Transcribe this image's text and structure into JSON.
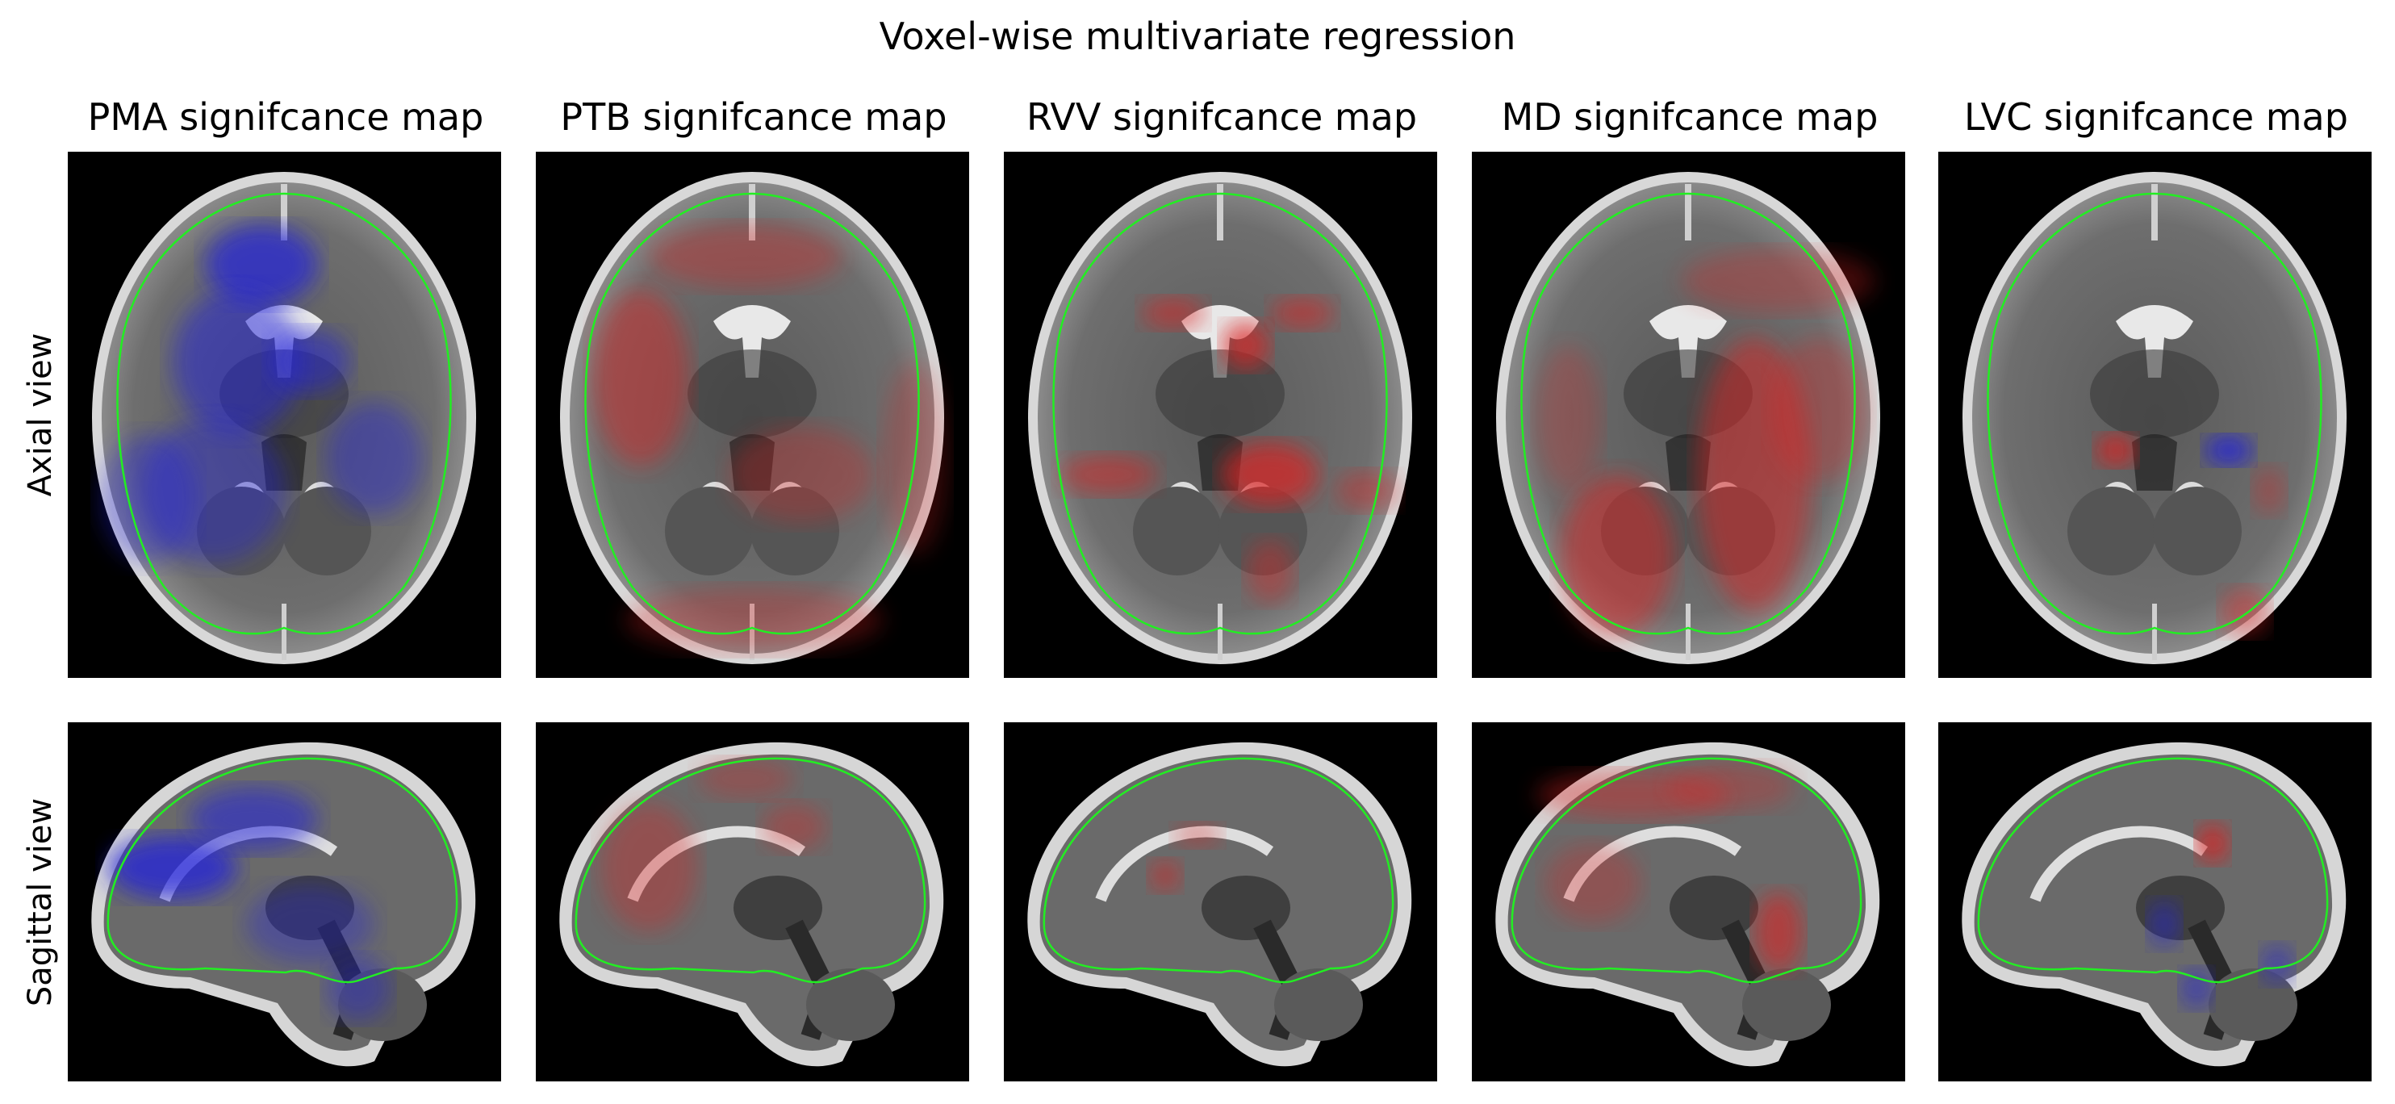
{
  "figure": {
    "title": "Voxel-wise multivariate regression",
    "columns": [
      {
        "title": "PMA signifcance map",
        "color": "#2222dd",
        "key": "pma"
      },
      {
        "title": "PTB signifcance map",
        "color": "#dd2222",
        "key": "ptb"
      },
      {
        "title": "RVV signifcance map",
        "color": "#dd2222",
        "key": "rvv"
      },
      {
        "title": "MD signifcance map",
        "color": "#dd2222",
        "key": "md"
      },
      {
        "title": "LVC signifcance map",
        "color": "#dd2222",
        "key": "lvc"
      }
    ],
    "rows": [
      {
        "label": "Axial view",
        "view": "axial"
      },
      {
        "label": "Sagittal view",
        "view": "sagittal"
      }
    ],
    "colors": {
      "background": "#000000",
      "brain_outline": "#22ee22",
      "negative_effect": "#2222dd",
      "positive_effect": "#dd2222"
    }
  }
}
